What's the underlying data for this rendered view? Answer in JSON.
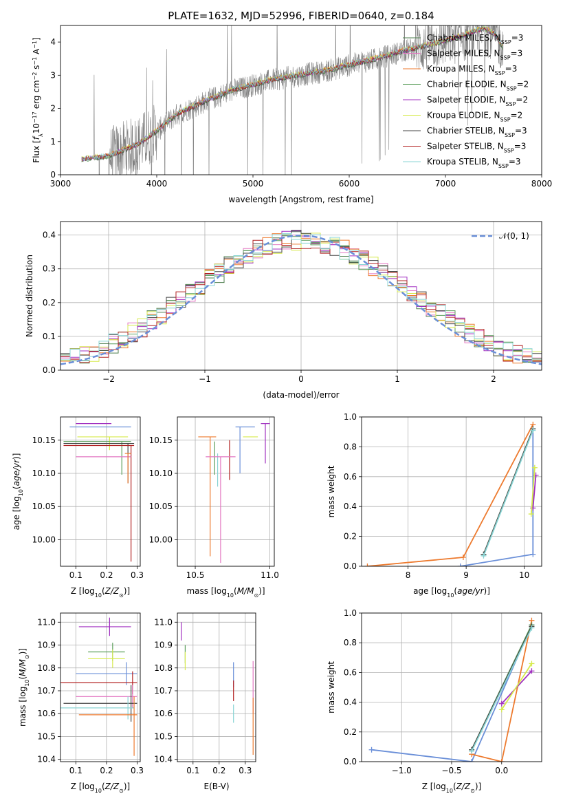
{
  "figure_title": "PLATE=1632, MJD=52996, FIBERID=0640, z=0.184",
  "legend_entries": [
    {
      "label": "Chabrier MILES, N_SSP=3",
      "pre": "Chabrier MILES, N",
      "sub": "SSP",
      "post": "=3",
      "color": "#4f7f4f"
    },
    {
      "label": "Salpeter MILES, N_SSP=3",
      "pre": "Salpeter MILES, N",
      "sub": "SSP",
      "post": "=3",
      "color": "#e377c2"
    },
    {
      "label": "Kroupa MILES, N_SSP=3",
      "pre": "Kroupa MILES, N",
      "sub": "SSP",
      "post": "=3",
      "color": "#ed7a2e"
    },
    {
      "label": "Chabrier ELODIE, N_SSP=2",
      "pre": "Chabrier ELODIE, N",
      "sub": "SSP",
      "post": "=2",
      "color": "#5a9e5a"
    },
    {
      "label": "Salpeter ELODIE, N_SSP=2",
      "pre": "Salpeter ELODIE, N",
      "sub": "SSP",
      "post": "=2",
      "color": "#a02fc0"
    },
    {
      "label": "Kroupa ELODIE, N_SSP=2",
      "pre": "Kroupa ELODIE, N",
      "sub": "SSP",
      "post": "=2",
      "color": "#d6ea4c"
    },
    {
      "label": "Chabrier STELIB, N_SSP=3",
      "pre": "Chabrier STELIB, N",
      "sub": "SSP",
      "post": "=3",
      "color": "#444444"
    },
    {
      "label": "Salpeter STELIB, N_SSP=3",
      "pre": "Salpeter STELIB, N",
      "sub": "SSP",
      "post": "=3",
      "color": "#b22222"
    },
    {
      "label": "Kroupa STELIB, N_SSP=3",
      "pre": "Kroupa STELIB, N",
      "sub": "SSP",
      "post": "=3",
      "color": "#88d4d4"
    }
  ],
  "colors": {
    "data": "#808080",
    "blue": "#6a8fd8",
    "orange": "#ed7a2e",
    "grid": "#b0b0b0"
  },
  "chart_data": [
    {
      "type": "line",
      "id": "spectrum",
      "xlabel": "wavelength [Angstrom, rest frame]",
      "ylabel": "Flux [f_λ 10^-17 erg cm^-2 s^-1 A^-1]",
      "xlim": [
        3000,
        8000
      ],
      "ylim": [
        0,
        4.5
      ],
      "xticks": [
        3000,
        4000,
        5000,
        6000,
        7000,
        8000
      ],
      "yticks": [
        0,
        1,
        2,
        3,
        4
      ],
      "grid": false,
      "legend_position": "top-right",
      "x_range": [
        3220,
        7600
      ],
      "continuum": {
        "x": [
          3220,
          3500,
          3800,
          4000,
          4200,
          4500,
          4800,
          5000,
          5200,
          5500,
          5800,
          6000,
          6300,
          6600,
          6900,
          7200,
          7400,
          7520,
          7600
        ],
        "y": [
          0.45,
          0.55,
          0.9,
          1.3,
          1.8,
          2.2,
          2.55,
          2.7,
          2.85,
          3.0,
          3.15,
          3.3,
          3.5,
          3.75,
          3.95,
          4.2,
          4.4,
          4.2,
          3.8
        ]
      }
    },
    {
      "type": "line",
      "id": "residuals",
      "xlabel": "(data-model)/error",
      "ylabel": "Normed distribution",
      "xlim": [
        -2.5,
        2.5
      ],
      "ylim": [
        0,
        0.44
      ],
      "xticks": [
        -2,
        -1,
        0,
        1,
        2
      ],
      "yticks": [
        0,
        0.1,
        0.2,
        0.3,
        0.4
      ],
      "grid": true,
      "legend_position": "top-right",
      "reference_curve": {
        "label": "𝒩(0, 1)",
        "mean": 0,
        "sigma": 1
      },
      "histogram_bins": 50
    },
    {
      "type": "scatter",
      "id": "age-vs-Z",
      "xlabel": "Z [log10(Z/Z⊙)]",
      "ylabel": "age  [log10(age/yr)]",
      "xlim": [
        0.05,
        0.31
      ],
      "ylim": [
        9.96,
        10.185
      ],
      "xticks": [
        0.1,
        0.2,
        0.3
      ],
      "yticks": [
        10.0,
        10.05,
        10.1,
        10.15
      ],
      "grid": true,
      "points": [
        {
          "x": 0.158,
          "y": 10.175,
          "xerr": [
            0.058,
            0.058
          ],
          "yerr": [
            0.0,
            0.0
          ],
          "color": "#a02fc0"
        },
        {
          "x": 0.21,
          "y": 10.17,
          "xerr": [
            0.13,
            0.07
          ],
          "yerr": [
            0.0,
            0.0
          ],
          "color": "#6a8fd8"
        },
        {
          "x": 0.21,
          "y": 10.155,
          "xerr": [
            0.105,
            0.06
          ],
          "yerr": [
            0.02,
            0.0
          ],
          "color": "#d6ea4c"
        },
        {
          "x": 0.25,
          "y": 10.148,
          "xerr": [
            0.19,
            0.03
          ],
          "yerr": [
            0.05,
            0.0
          ],
          "color": "#5a9e5a"
        },
        {
          "x": 0.27,
          "y": 10.145,
          "xerr": [
            0.21,
            0.02
          ],
          "yerr": [
            0.06,
            0.0
          ],
          "color": "#444444"
        },
        {
          "x": 0.28,
          "y": 10.142,
          "xerr": [
            0.22,
            0.01
          ],
          "yerr": [
            0.175,
            0.0
          ],
          "color": "#b22222"
        },
        {
          "x": 0.2,
          "y": 10.125,
          "xerr": [
            0.1,
            0.08
          ],
          "yerr": [
            0.0,
            0.0
          ],
          "color": "#e377c2"
        },
        {
          "x": 0.27,
          "y": 10.13,
          "xerr": [
            0.01,
            0.01
          ],
          "yerr": [
            0.045,
            0.0
          ],
          "color": "#ed7a2e"
        }
      ]
    },
    {
      "type": "scatter",
      "id": "age-vs-mass",
      "xlabel": "mass [log10(M/M⊙)]",
      "ylabel": "",
      "xlim": [
        10.38,
        11.03
      ],
      "ylim": [
        9.96,
        10.185
      ],
      "xticks": [
        10.5,
        11.0
      ],
      "yticks": [
        10.0,
        10.05,
        10.1,
        10.15
      ],
      "grid": true,
      "points": [
        {
          "x": 10.97,
          "y": 10.175,
          "xerr": [
            0.03,
            0.03
          ],
          "yerr": [
            0.06,
            0.0
          ],
          "color": "#a02fc0"
        },
        {
          "x": 10.8,
          "y": 10.17,
          "xerr": [
            0.03,
            0.1
          ],
          "yerr": [
            0.07,
            0.0
          ],
          "color": "#6a8fd8"
        },
        {
          "x": 10.87,
          "y": 10.155,
          "xerr": [
            0.05,
            0.05
          ],
          "yerr": [
            0.0,
            0.0
          ],
          "color": "#d6ea4c"
        },
        {
          "x": 10.6,
          "y": 10.155,
          "xerr": [
            0.08,
            0.04
          ],
          "yerr": [
            0.18,
            0.0
          ],
          "color": "#ed7a2e"
        },
        {
          "x": 10.73,
          "y": 10.15,
          "xerr": [
            0.0,
            0.0
          ],
          "yerr": [
            0.06,
            0.0
          ],
          "color": "#b22222"
        },
        {
          "x": 10.63,
          "y": 10.148,
          "xerr": [
            0.0,
            0.0
          ],
          "yerr": [
            0.05,
            0.0
          ],
          "color": "#5a9e5a"
        },
        {
          "x": 10.65,
          "y": 10.13,
          "xerr": [
            0.0,
            0.0
          ],
          "yerr": [
            0.05,
            0.0
          ],
          "color": "#88d4d4"
        },
        {
          "x": 10.67,
          "y": 10.125,
          "xerr": [
            0.1,
            0.1
          ],
          "yerr": [
            0.16,
            0.0
          ],
          "color": "#e377c2"
        }
      ]
    },
    {
      "type": "line",
      "id": "massweight-vs-age",
      "xlabel": "age  [log10(age/yr)]",
      "ylabel": "mass weight",
      "xlim": [
        7.2,
        10.3
      ],
      "ylim": [
        0,
        1.0
      ],
      "xticks": [
        8,
        9,
        10
      ],
      "yticks": [
        0,
        0.2,
        0.4,
        0.6,
        0.8,
        1.0
      ],
      "grid": true,
      "series": [
        {
          "color": "#6a8fd8",
          "x": [
            8.9,
            10.15,
            10.15
          ],
          "y": [
            0.0,
            0.08,
            0.92
          ]
        },
        {
          "color": "#ed7a2e",
          "x": [
            7.3,
            8.95,
            10.15
          ],
          "y": [
            0.0,
            0.06,
            0.95
          ]
        },
        {
          "color": "#5a9e5a",
          "x": [
            9.3,
            10.15
          ],
          "y": [
            0.08,
            0.92
          ]
        },
        {
          "color": "#444444",
          "x": [
            9.3,
            10.15
          ],
          "y": [
            0.08,
            0.92
          ]
        },
        {
          "color": "#88d4d4",
          "x": [
            9.3,
            10.15
          ],
          "y": [
            0.07,
            0.91
          ]
        },
        {
          "color": "#a02fc0",
          "x": [
            10.15,
            10.2
          ],
          "y": [
            0.39,
            0.61
          ]
        },
        {
          "color": "#d6ea4c",
          "x": [
            10.12,
            10.18
          ],
          "y": [
            0.35,
            0.66
          ]
        }
      ]
    },
    {
      "type": "scatter",
      "id": "mass-vs-Z",
      "xlabel": "Z [log10(Z/Z⊙)]",
      "ylabel": "mass [log10(M/M⊙)]",
      "xlim": [
        0.05,
        0.31
      ],
      "ylim": [
        10.39,
        11.04
      ],
      "xticks": [
        0.1,
        0.2,
        0.3
      ],
      "yticks": [
        10.4,
        10.5,
        10.6,
        10.7,
        10.8,
        10.9,
        11.0
      ],
      "grid": true,
      "points": [
        {
          "x": 0.21,
          "y": 10.98,
          "xerr": [
            0.1,
            0.07
          ],
          "yerr": [
            0.04,
            0.04
          ],
          "color": "#a02fc0"
        },
        {
          "x": 0.22,
          "y": 10.87,
          "xerr": [
            0.08,
            0.04
          ],
          "yerr": [
            0.04,
            0.04
          ],
          "color": "#5a9e5a"
        },
        {
          "x": 0.22,
          "y": 10.84,
          "xerr": [
            0.08,
            0.04
          ],
          "yerr": [
            0.04,
            0.04
          ],
          "color": "#d6ea4c"
        },
        {
          "x": 0.265,
          "y": 10.775,
          "xerr": [
            0.165,
            0.035
          ],
          "yerr": [
            0.05,
            0.05
          ],
          "color": "#6a8fd8"
        },
        {
          "x": 0.285,
          "y": 10.735,
          "xerr": [
            0.235,
            0.015
          ],
          "yerr": [
            0.05,
            0.05
          ],
          "color": "#b22222"
        },
        {
          "x": 0.285,
          "y": 10.675,
          "xerr": [
            0.185,
            0.015
          ],
          "yerr": [
            0.05,
            0.05
          ],
          "color": "#e377c2"
        },
        {
          "x": 0.28,
          "y": 10.645,
          "xerr": [
            0.22,
            0.02
          ],
          "yerr": [
            0.08,
            0.08
          ],
          "color": "#444444"
        },
        {
          "x": 0.27,
          "y": 10.625,
          "xerr": [
            0.22,
            0.02
          ],
          "yerr": [
            0.05,
            0.05
          ],
          "color": "#88d4d4"
        },
        {
          "x": 0.29,
          "y": 10.595,
          "xerr": [
            0.18,
            0.01
          ],
          "yerr": [
            0.18,
            0.08
          ],
          "color": "#ed7a2e"
        }
      ]
    },
    {
      "type": "scatter",
      "id": "mass-vs-EBV",
      "xlabel": "E(B-V)",
      "ylabel": "",
      "xlim": [
        0.04,
        0.34
      ],
      "ylim": [
        10.39,
        11.04
      ],
      "xticks": [
        0.1,
        0.2,
        0.3
      ],
      "yticks": [
        10.4,
        10.5,
        10.6,
        10.7,
        10.8,
        10.9,
        11.0
      ],
      "grid": true,
      "points": [
        {
          "x": 0.055,
          "y": 10.97,
          "xerr": [
            0.0,
            0.0
          ],
          "yerr": [
            0.05,
            0.03
          ],
          "color": "#a02fc0"
        },
        {
          "x": 0.07,
          "y": 10.86,
          "xerr": [
            0.0,
            0.0
          ],
          "yerr": [
            0.04,
            0.04
          ],
          "color": "#5a9e5a"
        },
        {
          "x": 0.07,
          "y": 10.83,
          "xerr": [
            0.0,
            0.0
          ],
          "yerr": [
            0.04,
            0.04
          ],
          "color": "#d6ea4c"
        },
        {
          "x": 0.255,
          "y": 10.775,
          "xerr": [
            0.0,
            0.0
          ],
          "yerr": [
            0.06,
            0.05
          ],
          "color": "#6a8fd8"
        },
        {
          "x": 0.255,
          "y": 10.715,
          "xerr": [
            0.0,
            0.0
          ],
          "yerr": [
            0.06,
            0.03
          ],
          "color": "#b22222"
        },
        {
          "x": 0.255,
          "y": 10.6,
          "xerr": [
            0.0,
            0.0
          ],
          "yerr": [
            0.04,
            0.04
          ],
          "color": "#88d4d4"
        },
        {
          "x": 0.33,
          "y": 10.72,
          "xerr": [
            0.0,
            0.0
          ],
          "yerr": [
            0.12,
            0.11
          ],
          "color": "#e377c2"
        },
        {
          "x": 0.33,
          "y": 10.55,
          "xerr": [
            0.0,
            0.0
          ],
          "yerr": [
            0.13,
            0.12
          ],
          "color": "#ed7a2e"
        }
      ]
    },
    {
      "type": "line",
      "id": "massweight-vs-Z",
      "xlabel": "Z [log10(Z/Z⊙)]",
      "ylabel": "mass weight",
      "xlim": [
        -1.4,
        0.4
      ],
      "ylim": [
        0,
        1.0
      ],
      "xticks": [
        -1.0,
        -0.5,
        0.0
      ],
      "yticks": [
        0,
        0.2,
        0.4,
        0.6,
        0.8,
        1.0
      ],
      "grid": true,
      "series": [
        {
          "color": "#6a8fd8",
          "x": [
            -1.3,
            -0.3,
            0.3
          ],
          "y": [
            0.08,
            0.0,
            0.92
          ]
        },
        {
          "color": "#ed7a2e",
          "x": [
            -0.3,
            0.0,
            0.3
          ],
          "y": [
            0.05,
            0.0,
            0.95
          ]
        },
        {
          "color": "#5a9e5a",
          "x": [
            -0.3,
            0.3
          ],
          "y": [
            0.08,
            0.92
          ]
        },
        {
          "color": "#444444",
          "x": [
            -0.3,
            0.3
          ],
          "y": [
            0.08,
            0.91
          ]
        },
        {
          "color": "#88d4d4",
          "x": [
            -0.3,
            0.3
          ],
          "y": [
            0.07,
            0.9
          ]
        },
        {
          "color": "#a02fc0",
          "x": [
            0.0,
            0.3
          ],
          "y": [
            0.39,
            0.61
          ]
        },
        {
          "color": "#d6ea4c",
          "x": [
            0.0,
            0.3
          ],
          "y": [
            0.35,
            0.66
          ]
        }
      ]
    }
  ]
}
